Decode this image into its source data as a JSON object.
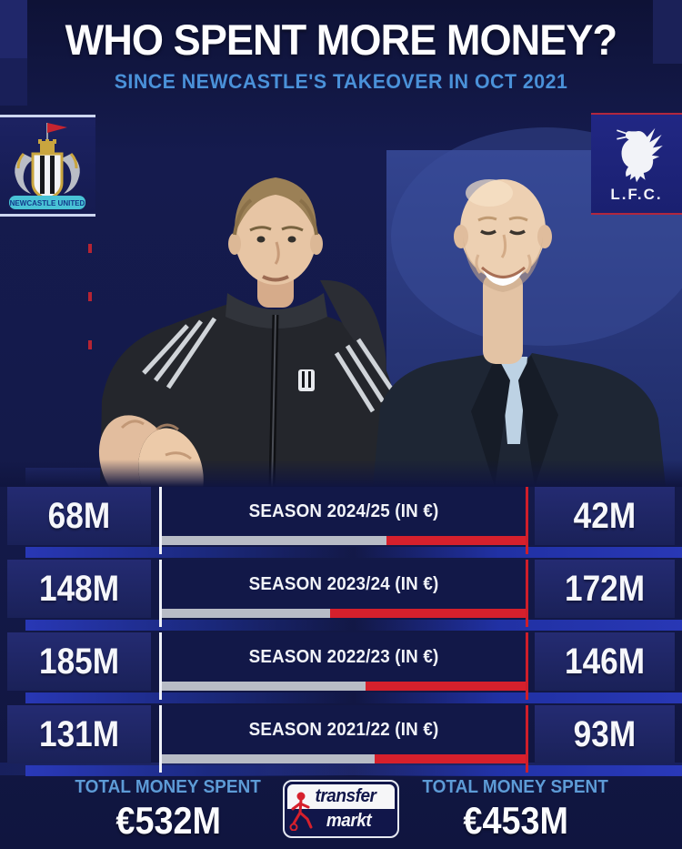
{
  "header": {
    "title": "WHO SPENT MORE MONEY?",
    "subtitle": "SINCE NEWCASTLE'S TAKEOVER IN OCT 2021"
  },
  "badges": {
    "newcastle": {
      "name": "Newcastle United",
      "banner": "NEWCASTLE UNITED"
    },
    "liverpool": {
      "name": "Liverpool FC",
      "label": "L.F.C."
    }
  },
  "rows": [
    {
      "left_value": "68M",
      "season_label": "SEASON 2024/25 (IN €)",
      "right_value": "42M",
      "newcastle_pct": 61.8
    },
    {
      "left_value": "148M",
      "season_label": "SEASON 2023/24 (IN €)",
      "right_value": "172M",
      "newcastle_pct": 46.3
    },
    {
      "left_value": "185M",
      "season_label": "SEASON 2022/23 (IN €)",
      "right_value": "146M",
      "newcastle_pct": 55.9
    },
    {
      "left_value": "131M",
      "season_label": "SEASON 2021/22 (IN €)",
      "right_value": "93M",
      "newcastle_pct": 58.5
    }
  ],
  "totals": {
    "left": {
      "label": "TOTAL MONEY SPENT",
      "value": "€532M"
    },
    "right": {
      "label": "TOTAL MONEY SPENT",
      "value": "€453M"
    }
  },
  "logo": {
    "line1": "transfer",
    "line2": "markt"
  },
  "chart_data": {
    "type": "bar",
    "title": "WHO SPENT MORE MONEY?",
    "subtitle": "SINCE NEWCASTLE'S TAKEOVER IN OCT 2021",
    "unit": "million €",
    "categories": [
      "SEASON 2024/25 (IN €)",
      "SEASON 2023/24 (IN €)",
      "SEASON 2022/23 (IN €)",
      "SEASON 2021/22 (IN €)"
    ],
    "series": [
      {
        "name": "Newcastle United",
        "values": [
          68,
          148,
          185,
          131
        ],
        "total": 532,
        "color": "#b8bcc6",
        "side": "left"
      },
      {
        "name": "Liverpool FC",
        "values": [
          42,
          172,
          146,
          93
        ],
        "total": 453,
        "color": "#d6202c",
        "side": "right"
      }
    ],
    "bar_style": "each row is a 100%-stacked proportion bar: grey = Newcastle share, red = Liverpool share",
    "source": "transfermarkt"
  },
  "icon_colors": {
    "accent_blue": "#4a91d9",
    "bar_grey": "#b8bcc6",
    "bar_red": "#d6202c",
    "panel_navy": "#121848"
  }
}
